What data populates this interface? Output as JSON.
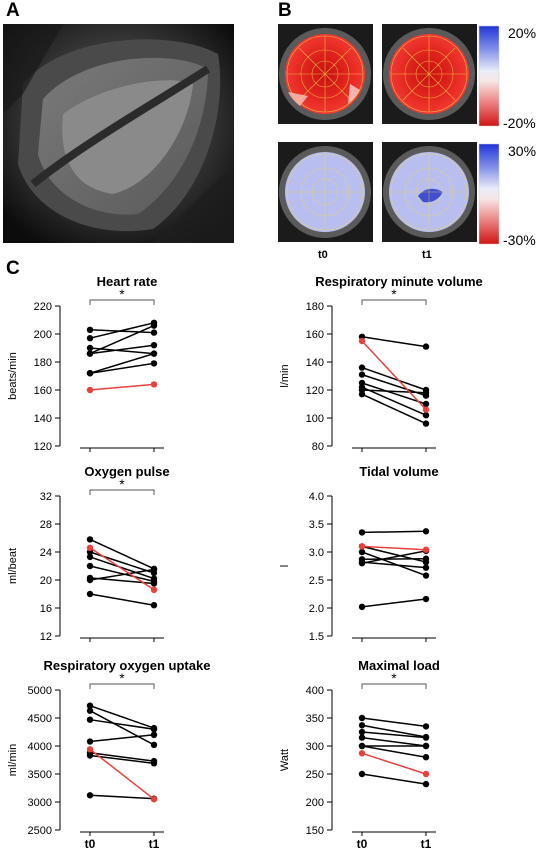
{
  "panels": {
    "a": {
      "letter": "A"
    },
    "b": {
      "letter": "B",
      "scale_top": {
        "max_label": "20%",
        "min_label": "-20%"
      },
      "scale_bottom": {
        "max_label": "30%",
        "min_label": "-30%"
      },
      "time_labels": [
        "t0",
        "t1"
      ]
    },
    "c": {
      "letter": "C"
    }
  },
  "colors": {
    "normal": "#000000",
    "highlight": "#e8403b",
    "bracket": "#555555",
    "strain_red": "#e52620",
    "strain_blue": "#b8bff0"
  },
  "chart_data": [
    {
      "type": "line",
      "title": "Heart rate",
      "xlabel": "",
      "ylabel": "beats/min",
      "categories": [
        "t0",
        "t1"
      ],
      "ylim": [
        120,
        220
      ],
      "yticks": [
        120,
        140,
        160,
        180,
        200,
        220
      ],
      "tick_labels": [
        "120",
        "140",
        "160",
        "180",
        "200",
        "220"
      ],
      "show_xticklabels": false,
      "significance": "*",
      "series": [
        {
          "values": [
            203,
            201
          ],
          "highlight": false
        },
        {
          "values": [
            197,
            208
          ],
          "highlight": false
        },
        {
          "values": [
            190,
            186
          ],
          "highlight": false
        },
        {
          "values": [
            186,
            206
          ],
          "highlight": false
        },
        {
          "values": [
            186,
            192
          ],
          "highlight": false
        },
        {
          "values": [
            172,
            186
          ],
          "highlight": false
        },
        {
          "values": [
            172,
            179
          ],
          "highlight": false
        },
        {
          "values": [
            160,
            164
          ],
          "highlight": true
        }
      ]
    },
    {
      "type": "line",
      "title": "Respiratory minute volume",
      "xlabel": "",
      "ylabel": "l/min",
      "categories": [
        "t0",
        "t1"
      ],
      "ylim": [
        80,
        180
      ],
      "yticks": [
        80,
        100,
        120,
        140,
        160,
        180
      ],
      "tick_labels": [
        "80",
        "100",
        "120",
        "140",
        "160",
        "180"
      ],
      "show_xticklabels": false,
      "significance": "*",
      "series": [
        {
          "values": [
            158,
            151
          ],
          "highlight": false
        },
        {
          "values": [
            136,
            120
          ],
          "highlight": false
        },
        {
          "values": [
            131,
            116
          ],
          "highlight": false
        },
        {
          "values": [
            125,
            110
          ],
          "highlight": false
        },
        {
          "values": [
            122,
            102
          ],
          "highlight": false
        },
        {
          "values": [
            120,
            118
          ],
          "highlight": false
        },
        {
          "values": [
            117,
            96
          ],
          "highlight": false
        },
        {
          "values": [
            155,
            106
          ],
          "highlight": true
        }
      ]
    },
    {
      "type": "line",
      "title": "Oxygen pulse",
      "xlabel": "",
      "ylabel": "ml/beat",
      "categories": [
        "t0",
        "t1"
      ],
      "ylim": [
        12,
        32
      ],
      "yticks": [
        12,
        16,
        20,
        24,
        28,
        32
      ],
      "tick_labels": [
        "12",
        "16",
        "20",
        "24",
        "28",
        "32"
      ],
      "show_xticklabels": false,
      "significance": "*",
      "series": [
        {
          "values": [
            25.8,
            21.6
          ],
          "highlight": false
        },
        {
          "values": [
            24.0,
            21.0
          ],
          "highlight": false
        },
        {
          "values": [
            23.3,
            20.2
          ],
          "highlight": false
        },
        {
          "values": [
            22.0,
            19.8
          ],
          "highlight": false
        },
        {
          "values": [
            20.3,
            19.5
          ],
          "highlight": false
        },
        {
          "values": [
            20.0,
            21.5
          ],
          "highlight": false
        },
        {
          "values": [
            18.0,
            16.4
          ],
          "highlight": false
        },
        {
          "values": [
            24.6,
            18.6
          ],
          "highlight": true
        }
      ]
    },
    {
      "type": "line",
      "title": "Tidal volume",
      "xlabel": "",
      "ylabel": "l",
      "categories": [
        "t0",
        "t1"
      ],
      "ylim": [
        1.5,
        4.0
      ],
      "yticks": [
        1.5,
        2.0,
        2.5,
        3.0,
        3.5,
        4.0
      ],
      "tick_labels": [
        "1.5",
        "2.0",
        "2.5",
        "3.0",
        "3.5",
        "4.0"
      ],
      "show_xticklabels": false,
      "significance": "",
      "series": [
        {
          "values": [
            3.35,
            3.37
          ],
          "highlight": false
        },
        {
          "values": [
            3.1,
            2.82
          ],
          "highlight": false
        },
        {
          "values": [
            3.0,
            2.58
          ],
          "highlight": false
        },
        {
          "values": [
            2.87,
            2.88
          ],
          "highlight": false
        },
        {
          "values": [
            2.82,
            2.72
          ],
          "highlight": false
        },
        {
          "values": [
            2.8,
            3.02
          ],
          "highlight": false
        },
        {
          "values": [
            2.02,
            2.16
          ],
          "highlight": false
        },
        {
          "values": [
            3.1,
            3.04
          ],
          "highlight": true
        }
      ]
    },
    {
      "type": "line",
      "title": "Respiratory oxygen uptake",
      "xlabel": "",
      "ylabel": "ml/min",
      "categories": [
        "t0",
        "t1"
      ],
      "ylim": [
        2500,
        5000
      ],
      "yticks": [
        2500,
        3000,
        3500,
        4000,
        4500,
        5000
      ],
      "tick_labels": [
        "2500",
        "3000",
        "3500",
        "4000",
        "4500",
        "5000"
      ],
      "show_xticklabels": true,
      "significance": "*",
      "series": [
        {
          "values": [
            4720,
            4320
          ],
          "highlight": false
        },
        {
          "values": [
            4630,
            4020
          ],
          "highlight": false
        },
        {
          "values": [
            4470,
            4300
          ],
          "highlight": false
        },
        {
          "values": [
            4080,
            4200
          ],
          "highlight": false
        },
        {
          "values": [
            3880,
            3730
          ],
          "highlight": false
        },
        {
          "values": [
            3830,
            3690
          ],
          "highlight": false
        },
        {
          "values": [
            3120,
            3060
          ],
          "highlight": false
        },
        {
          "values": [
            3940,
            3050
          ],
          "highlight": true
        }
      ]
    },
    {
      "type": "line",
      "title": "Maximal load",
      "xlabel": "",
      "ylabel": "Watt",
      "categories": [
        "t0",
        "t1"
      ],
      "ylim": [
        150,
        400
      ],
      "yticks": [
        150,
        200,
        250,
        300,
        350,
        400
      ],
      "tick_labels": [
        "150",
        "200",
        "250",
        "300",
        "350",
        "400"
      ],
      "show_xticklabels": true,
      "significance": "*",
      "series": [
        {
          "values": [
            350,
            335
          ],
          "highlight": false
        },
        {
          "values": [
            337,
            316
          ],
          "highlight": false
        },
        {
          "values": [
            325,
            315
          ],
          "highlight": false
        },
        {
          "values": [
            315,
            300
          ],
          "highlight": false
        },
        {
          "values": [
            300,
            280
          ],
          "highlight": false
        },
        {
          "values": [
            250,
            232
          ],
          "highlight": false
        },
        {
          "values": [
            300,
            300
          ],
          "highlight": false
        },
        {
          "values": [
            287,
            250
          ],
          "highlight": true
        }
      ]
    }
  ]
}
